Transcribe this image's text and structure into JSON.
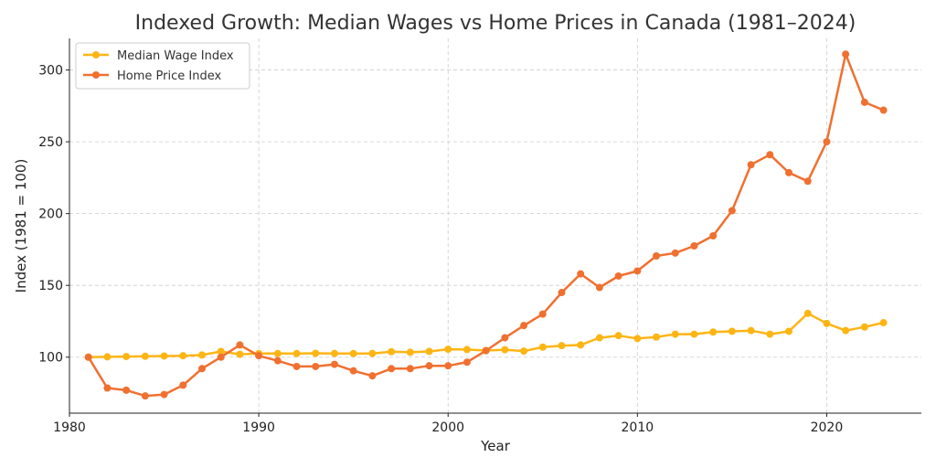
{
  "chart_data": {
    "type": "line",
    "title": "Indexed Growth: Median Wages vs Home Prices in Canada (1981–2024)",
    "xlabel": "Year",
    "ylabel": "Index (1981 = 100)",
    "xlim": [
      1980,
      2025
    ],
    "ylim": [
      61,
      322
    ],
    "xticks": [
      1980,
      1990,
      2000,
      2010,
      2020
    ],
    "yticks": [
      100,
      150,
      200,
      250,
      300
    ],
    "grid": true,
    "legend_position": "top-left",
    "x": [
      1981,
      1982,
      1983,
      1984,
      1985,
      1986,
      1987,
      1988,
      1989,
      1990,
      1991,
      1992,
      1993,
      1994,
      1995,
      1996,
      1997,
      1998,
      1999,
      2000,
      2001,
      2002,
      2003,
      2004,
      2005,
      2006,
      2007,
      2008,
      2009,
      2010,
      2011,
      2012,
      2013,
      2014,
      2015,
      2016,
      2017,
      2018,
      2019,
      2020,
      2021,
      2022,
      2023
    ],
    "series": [
      {
        "name": "Median Wage Index",
        "color": "#FDB515",
        "values": [
          100,
          100.2,
          100.4,
          100.6,
          100.8,
          101,
          101.5,
          104,
          102,
          102.5,
          102.5,
          102.5,
          102.7,
          102.6,
          102.5,
          102.6,
          103.8,
          103.4,
          104,
          105.5,
          105.3,
          104.6,
          105.2,
          104.2,
          107,
          108,
          108.5,
          113.5,
          115,
          113,
          114,
          116,
          116,
          117.5,
          118,
          118.5,
          116,
          118,
          130.5,
          123.5,
          118.5,
          121,
          124
        ]
      },
      {
        "name": "Home Price Index",
        "color": "#F07030",
        "values": [
          100,
          78.5,
          77,
          73,
          74,
          80.5,
          92,
          100,
          108.5,
          101,
          97.5,
          93.5,
          93.5,
          95,
          90.5,
          87,
          92,
          92,
          94,
          94,
          96.5,
          104.5,
          113.5,
          122,
          130,
          145,
          158,
          148.5,
          156.5,
          160,
          170.5,
          172.5,
          177.5,
          184.5,
          202,
          234,
          241,
          228.5,
          222.5,
          250,
          311,
          277.5,
          272
        ]
      }
    ]
  }
}
